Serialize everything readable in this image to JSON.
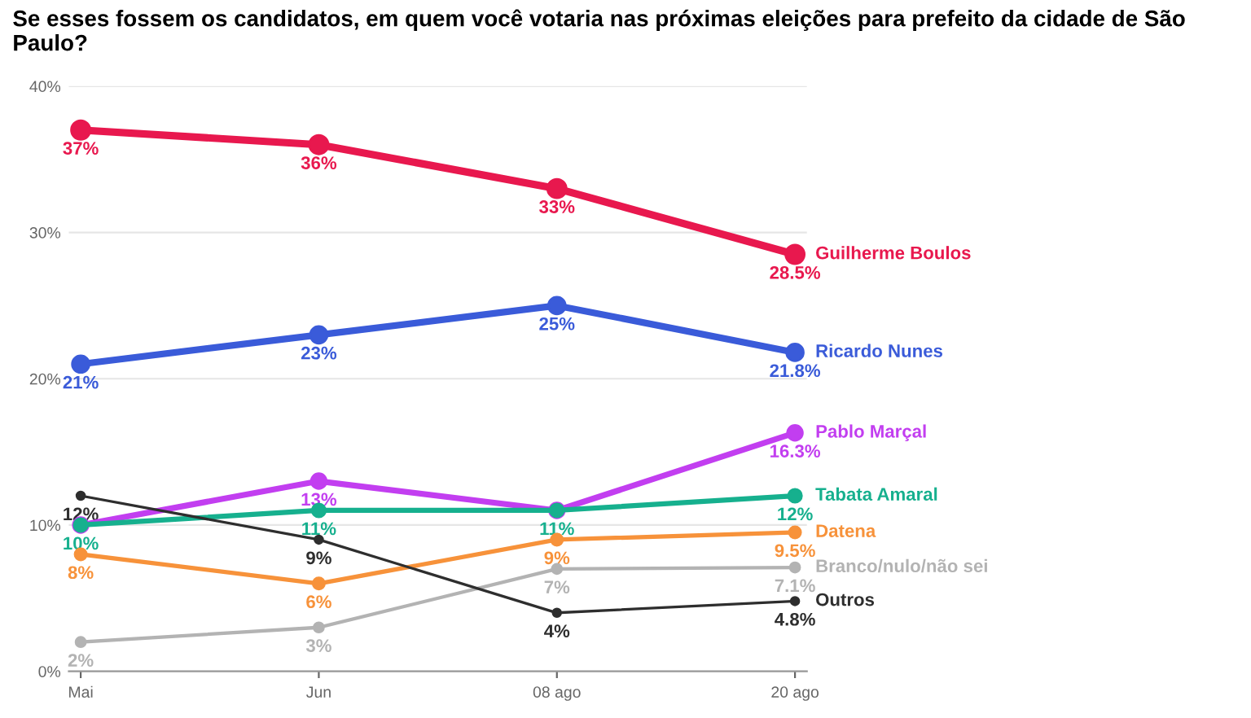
{
  "chart_data": {
    "type": "line",
    "title": "Se esses fossem os candidatos, em quem você votaria nas próximas eleições para prefeito da cidade de São Paulo?",
    "categories": [
      "Mai",
      "Jun",
      "08 ago",
      "20 ago"
    ],
    "series": [
      {
        "name": "Guilherme Boulos",
        "color": "#e8184e",
        "values": [
          37,
          36,
          33,
          28.5
        ],
        "value_labels": [
          "37%",
          "36%",
          "33%",
          "28.5%"
        ]
      },
      {
        "name": "Ricardo Nunes",
        "color": "#3a5bd9",
        "values": [
          21,
          23,
          25,
          21.8
        ],
        "value_labels": [
          "21%",
          "23%",
          "25%",
          "21.8%"
        ]
      },
      {
        "name": "Pablo Marçal",
        "color": "#c23ef0",
        "values": [
          10,
          13,
          11,
          16.3
        ],
        "value_labels": [
          null,
          "13%",
          null,
          "16.3%"
        ]
      },
      {
        "name": "Tabata Amaral",
        "color": "#16b08e",
        "values": [
          10,
          11,
          11,
          12
        ],
        "value_labels": [
          "10%",
          "11%",
          "11%",
          "12%"
        ]
      },
      {
        "name": "Datena",
        "color": "#f7923a",
        "values": [
          8,
          6,
          9,
          9.5
        ],
        "value_labels": [
          "8%",
          "6%",
          "9%",
          "9.5%"
        ]
      },
      {
        "name": "Branco/nulo/não sei",
        "color": "#b3b3b3",
        "values": [
          2,
          3,
          7,
          7.1
        ],
        "value_labels": [
          "2%",
          "3%",
          "7%",
          "7.1%"
        ]
      },
      {
        "name": "Outros",
        "color": "#2e2e2e",
        "values": [
          12,
          9,
          4,
          4.8
        ],
        "value_labels": [
          "12%",
          "9%",
          "4%",
          "4.8%"
        ]
      }
    ],
    "ylim": [
      0,
      40
    ],
    "yticks": [
      {
        "value": 0,
        "label": "0%"
      },
      {
        "value": 10,
        "label": "10%"
      },
      {
        "value": 20,
        "label": "20%"
      },
      {
        "value": 30,
        "label": "30%"
      },
      {
        "value": 40,
        "label": "40%"
      }
    ],
    "grid": "y",
    "marker": "circle",
    "line_style": "solid",
    "legend": false
  }
}
